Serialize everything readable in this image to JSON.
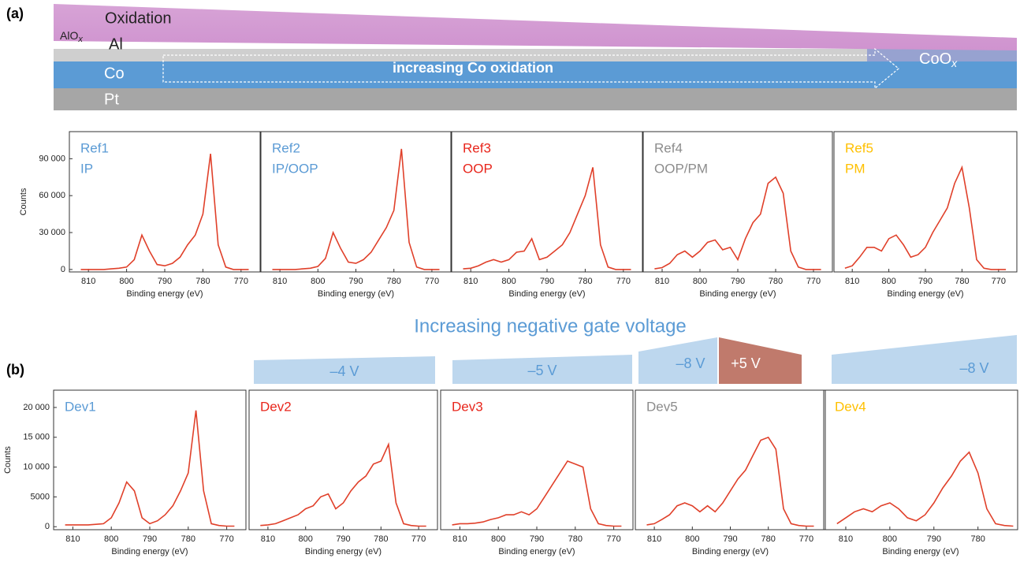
{
  "figure": {
    "panel_a": "(a)",
    "panel_b": "(b)",
    "oxidation": "Oxidation",
    "alox": {
      "base": "AlO",
      "sub": "x"
    },
    "al": "Al",
    "co": "Co",
    "pt": "Pt",
    "arrow": "increasing Co oxidation",
    "coox": {
      "base": "CoO",
      "sub": "x"
    },
    "gate_title": "Increasing negative gate voltage",
    "voltages": [
      "–4 V",
      "–5 V",
      "–8 V",
      "+5 V",
      "–8 V"
    ]
  },
  "chart_data": [
    {
      "type": "line",
      "title": "Ref1",
      "subtitle": "IP",
      "title_color": "#5b9bd5",
      "ylabel": "Counts",
      "xlabel": "Binding energy (eV)",
      "xlim": [
        815,
        765
      ],
      "xticks": [
        810,
        800,
        790,
        780,
        770
      ],
      "ylim": [
        -2000,
        112000
      ],
      "yticks": [
        0,
        {
          "value": 30000,
          "label": "30 000"
        },
        {
          "value": 60000,
          "label": "60 000"
        },
        {
          "value": 90000,
          "label": "90 000"
        }
      ],
      "x": [
        812,
        810,
        808,
        806,
        804,
        802,
        800,
        798,
        796,
        794,
        792,
        790,
        788,
        786,
        784,
        782,
        780,
        778,
        776,
        774,
        772,
        770,
        768
      ],
      "series": [
        {
          "color": "#e0402a",
          "values": [
            0,
            0,
            0,
            0,
            500,
            1000,
            2000,
            8000,
            28000,
            15000,
            4000,
            3000,
            5000,
            10000,
            20000,
            28000,
            45000,
            94000,
            20000,
            2000,
            0,
            0,
            0
          ]
        }
      ]
    },
    {
      "type": "line",
      "title": "Ref2",
      "subtitle": "IP/OOP",
      "title_color": "#5b9bd5",
      "xlabel": "Binding energy (eV)",
      "xlim": [
        815,
        765
      ],
      "xticks": [
        810,
        800,
        790,
        780,
        770
      ],
      "ylim": [
        -2000,
        112000
      ],
      "x": [
        812,
        810,
        808,
        806,
        804,
        802,
        800,
        798,
        796,
        794,
        792,
        790,
        788,
        786,
        784,
        782,
        780,
        778,
        776,
        774,
        772,
        770,
        768
      ],
      "series": [
        {
          "color": "#e0402a",
          "values": [
            0,
            0,
            0,
            0,
            500,
            1000,
            2500,
            9000,
            30000,
            17000,
            6000,
            5000,
            8000,
            14000,
            24000,
            34000,
            48000,
            98000,
            22000,
            2000,
            0,
            0,
            0
          ]
        }
      ]
    },
    {
      "type": "line",
      "title": "Ref3",
      "subtitle": "OOP",
      "title_color": "#e8261c",
      "xlabel": "Binding energy (eV)",
      "xlim": [
        815,
        765
      ],
      "xticks": [
        810,
        800,
        790,
        780,
        770
      ],
      "ylim": [
        -2000,
        112000
      ],
      "x": [
        812,
        810,
        808,
        806,
        804,
        802,
        800,
        798,
        796,
        794,
        792,
        790,
        788,
        786,
        784,
        782,
        780,
        778,
        776,
        774,
        772,
        770,
        768
      ],
      "series": [
        {
          "color": "#e0402a",
          "values": [
            500,
            1000,
            3000,
            6000,
            8000,
            6000,
            8000,
            14000,
            15000,
            25000,
            8000,
            10000,
            15000,
            20000,
            30000,
            45000,
            60000,
            83000,
            20000,
            2000,
            0,
            0,
            0
          ]
        }
      ]
    },
    {
      "type": "line",
      "title": "Ref4",
      "subtitle": "OOP/PM",
      "title_color": "#8c8c8c",
      "xlabel": "Binding energy (eV)",
      "xlim": [
        815,
        765
      ],
      "xticks": [
        810,
        800,
        790,
        780,
        770
      ],
      "ylim": [
        -2000,
        112000
      ],
      "x": [
        812,
        810,
        808,
        806,
        804,
        802,
        800,
        798,
        796,
        794,
        792,
        790,
        788,
        786,
        784,
        782,
        780,
        778,
        776,
        774,
        772,
        770,
        768
      ],
      "series": [
        {
          "color": "#e0402a",
          "values": [
            500,
            1500,
            5000,
            12000,
            15000,
            10000,
            15000,
            22000,
            24000,
            16000,
            18000,
            8000,
            25000,
            38000,
            45000,
            70000,
            75000,
            62000,
            15000,
            2000,
            0,
            0,
            0
          ]
        }
      ]
    },
    {
      "type": "line",
      "title": "Ref5",
      "subtitle": "PM",
      "title_color": "#ffc000",
      "xlabel": "Binding energy (eV)",
      "xlim": [
        815,
        765
      ],
      "xticks": [
        810,
        800,
        790,
        780,
        770
      ],
      "ylim": [
        -2000,
        112000
      ],
      "x": [
        812,
        810,
        808,
        806,
        804,
        802,
        800,
        798,
        796,
        794,
        792,
        790,
        788,
        786,
        784,
        782,
        780,
        778,
        776,
        774,
        772,
        770,
        768
      ],
      "series": [
        {
          "color": "#e0402a",
          "values": [
            1000,
            3000,
            10000,
            18000,
            18000,
            15000,
            25000,
            28000,
            20000,
            10000,
            12000,
            18000,
            30000,
            40000,
            50000,
            70000,
            83000,
            50000,
            8000,
            1000,
            0,
            0,
            0
          ]
        }
      ]
    },
    {
      "type": "line",
      "title": "Dev1",
      "title_color": "#5b9bd5",
      "ylabel": "Counts",
      "xlabel": "Binding energy (eV)",
      "xlim": [
        815,
        765
      ],
      "xticks": [
        810,
        800,
        790,
        780,
        770
      ],
      "ylim": [
        -500,
        22900
      ],
      "yticks": [
        0,
        5000,
        {
          "value": 10000,
          "label": "10 000"
        },
        {
          "value": 15000,
          "label": "15 000"
        },
        {
          "value": 20000,
          "label": "20 000"
        }
      ],
      "x": [
        812,
        810,
        808,
        806,
        804,
        802,
        800,
        798,
        796,
        794,
        792,
        790,
        788,
        786,
        784,
        782,
        780,
        778,
        776,
        774,
        772,
        770,
        768
      ],
      "series": [
        {
          "color": "#e0402a",
          "values": [
            300,
            300,
            300,
            300,
            400,
            500,
            1500,
            4000,
            7500,
            6000,
            1500,
            500,
            1000,
            2000,
            3500,
            6000,
            9000,
            19500,
            6000,
            500,
            200,
            100,
            100
          ]
        }
      ]
    },
    {
      "type": "line",
      "title": "Dev2",
      "title_color": "#e8261c",
      "xlabel": "Binding energy (eV)",
      "xlim": [
        815,
        765
      ],
      "xticks": [
        810,
        800,
        790,
        780,
        770
      ],
      "ylim": [
        -500,
        22900
      ],
      "x": [
        812,
        810,
        808,
        806,
        804,
        802,
        800,
        798,
        796,
        794,
        792,
        790,
        788,
        786,
        784,
        782,
        780,
        778,
        776,
        774,
        772,
        770,
        768
      ],
      "series": [
        {
          "color": "#e0402a",
          "values": [
            200,
            300,
            500,
            1000,
            1500,
            2000,
            3000,
            3500,
            5000,
            5500,
            3000,
            4000,
            6000,
            7500,
            8500,
            10500,
            11000,
            13800,
            4000,
            500,
            200,
            100,
            100
          ]
        }
      ]
    },
    {
      "type": "line",
      "title": "Dev3",
      "title_color": "#e8261c",
      "xlabel": "Binding energy (eV)",
      "xlim": [
        815,
        765
      ],
      "xticks": [
        810,
        800,
        790,
        780,
        770
      ],
      "ylim": [
        -500,
        22900
      ],
      "x": [
        812,
        810,
        808,
        806,
        804,
        802,
        800,
        798,
        796,
        794,
        792,
        790,
        788,
        786,
        784,
        782,
        780,
        778,
        776,
        774,
        772,
        770,
        768
      ],
      "series": [
        {
          "color": "#e0402a",
          "values": [
            300,
            500,
            500,
            600,
            800,
            1200,
            1500,
            2000,
            2000,
            2500,
            2000,
            3000,
            5000,
            7000,
            9000,
            11000,
            10500,
            10000,
            3000,
            500,
            200,
            100,
            100
          ]
        }
      ]
    },
    {
      "type": "line",
      "title": "Dev5",
      "title_color": "#8c8c8c",
      "xlabel": "Binding energy (eV)",
      "xlim": [
        815,
        765
      ],
      "xticks": [
        810,
        800,
        790,
        780,
        770
      ],
      "ylim": [
        -500,
        22900
      ],
      "x": [
        812,
        810,
        808,
        806,
        804,
        802,
        800,
        798,
        796,
        794,
        792,
        790,
        788,
        786,
        784,
        782,
        780,
        778,
        776,
        774,
        772,
        770,
        768
      ],
      "series": [
        {
          "color": "#e0402a",
          "values": [
            300,
            500,
            1200,
            2000,
            3500,
            4000,
            3500,
            2500,
            3500,
            2500,
            4000,
            6000,
            8000,
            9500,
            12000,
            14500,
            15000,
            13000,
            3000,
            500,
            200,
            100,
            100
          ]
        }
      ]
    },
    {
      "type": "line",
      "title": "Dev4",
      "title_color": "#ffc000",
      "xlabel": "Binding energy (eV)",
      "xlim": [
        815,
        771
      ],
      "xticks": [
        810,
        800,
        790,
        780
      ],
      "ylim": [
        -500,
        22900
      ],
      "x": [
        812,
        810,
        808,
        806,
        804,
        802,
        800,
        798,
        796,
        794,
        792,
        790,
        788,
        786,
        784,
        782,
        780,
        778,
        776,
        774,
        772
      ],
      "series": [
        {
          "color": "#e0402a",
          "values": [
            500,
            1500,
            2500,
            3000,
            2500,
            3500,
            4000,
            3000,
            1500,
            1000,
            2000,
            4000,
            6500,
            8500,
            11000,
            12500,
            9000,
            3000,
            500,
            200,
            100
          ]
        }
      ]
    }
  ]
}
